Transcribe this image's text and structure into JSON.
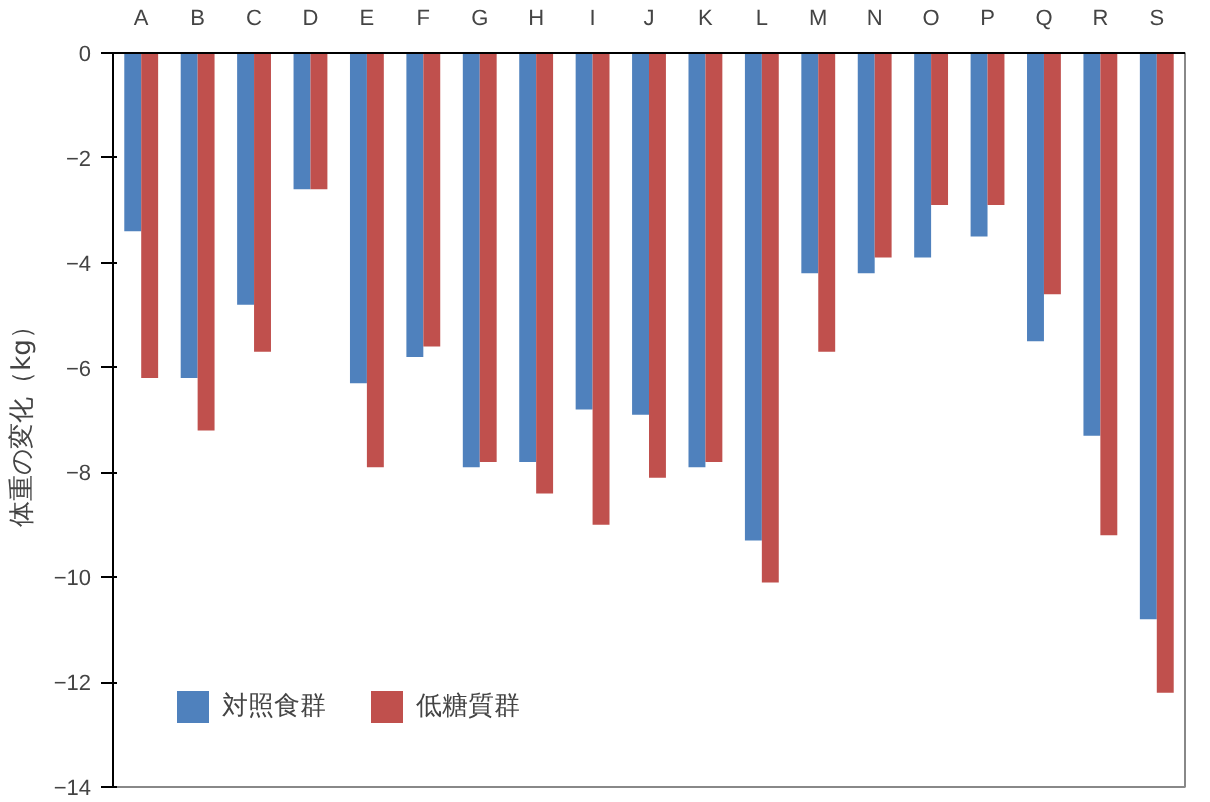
{
  "chart_data": {
    "type": "bar",
    "ylabel": "体重の変化（kg）",
    "categories": [
      "A",
      "B",
      "C",
      "D",
      "E",
      "F",
      "G",
      "H",
      "I",
      "J",
      "K",
      "L",
      "M",
      "N",
      "O",
      "P",
      "Q",
      "R",
      "S"
    ],
    "series": [
      {
        "name": "対照食群",
        "color": "#4f81bd",
        "values": [
          -3.4,
          -6.2,
          -4.8,
          -2.6,
          -6.3,
          -5.8,
          -7.9,
          -7.8,
          -6.8,
          -6.9,
          -7.9,
          -9.3,
          -4.2,
          -4.2,
          -3.9,
          -3.5,
          -5.5,
          -7.3,
          -10.8
        ]
      },
      {
        "name": "低糖質群",
        "color": "#c0504d",
        "values": [
          -6.2,
          -7.2,
          -5.7,
          -2.6,
          -7.9,
          -5.6,
          -7.8,
          -8.4,
          -9.0,
          -8.1,
          -7.8,
          -10.1,
          -5.7,
          -3.9,
          -2.9,
          -2.9,
          -4.6,
          -9.2,
          -12.2
        ]
      }
    ],
    "ylim": [
      -14,
      0
    ],
    "yticks": [
      0,
      -2,
      -4,
      -6,
      -8,
      -10,
      -12,
      -14
    ],
    "grid": false,
    "legend": "bottom left"
  }
}
